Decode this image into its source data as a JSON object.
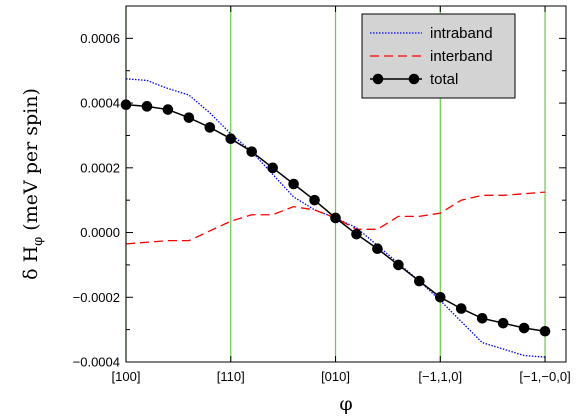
{
  "chart_data": {
    "type": "line",
    "title": "",
    "xlabel": "φ",
    "ylabel_main": "δ H",
    "ylabel_sub": "φ",
    "ylabel_rest": " (meV per spin)",
    "xlim": [
      0,
      4.2
    ],
    "ylim": [
      -0.0004,
      0.0007
    ],
    "x_ticks": [
      {
        "value": 0,
        "label": "[100]"
      },
      {
        "value": 1,
        "label": "[110]"
      },
      {
        "value": 2,
        "label": "[010]"
      },
      {
        "value": 3,
        "label": "[−1,1,0]"
      },
      {
        "value": 4,
        "label": "[−1,−0,0]"
      }
    ],
    "y_ticks": [
      {
        "value": -0.0004,
        "label": "−0.0004"
      },
      {
        "value": -0.0002,
        "label": "−0.0002"
      },
      {
        "value": 0,
        "label": "0.0000"
      },
      {
        "value": 0.0002,
        "label": "0.0002"
      },
      {
        "value": 0.0004,
        "label": "0.0004"
      },
      {
        "value": 0.0006,
        "label": "0.0006"
      }
    ],
    "grid": "vertical lines at x ticks",
    "grid_color": "#66cc44",
    "legend_position": "top-right",
    "series": [
      {
        "name": "intraband",
        "style": "dotted",
        "color": "#0000ff",
        "x": [
          0,
          0.2,
          0.4,
          0.6,
          0.8,
          1.0,
          1.2,
          1.4,
          1.6,
          1.8,
          2.0,
          2.2,
          2.4,
          2.6,
          2.8,
          3.0,
          3.2,
          3.4,
          3.6,
          3.8,
          4.0
        ],
        "y": [
          0.000475,
          0.00047,
          0.000445,
          0.000425,
          0.00037,
          0.000305,
          0.00025,
          0.00018,
          0.00011,
          7e-05,
          4.5e-05,
          1.5e-05,
          -4e-05,
          -9.5e-05,
          -0.00015,
          -0.00021,
          -0.000275,
          -0.00034,
          -0.00036,
          -0.00038,
          -0.000385
        ]
      },
      {
        "name": "interband",
        "style": "dashed",
        "color": "#ff0000",
        "x": [
          0,
          0.2,
          0.4,
          0.6,
          0.8,
          1.0,
          1.2,
          1.4,
          1.6,
          1.8,
          2.0,
          2.2,
          2.4,
          2.6,
          2.8,
          3.0,
          3.2,
          3.4,
          3.6,
          3.8,
          4.0
        ],
        "y": [
          -3.5e-05,
          -3e-05,
          -2.5e-05,
          -2.5e-05,
          5e-06,
          3.5e-05,
          5.5e-05,
          5.5e-05,
          8e-05,
          7e-05,
          4.5e-05,
          1e-05,
          1e-05,
          5e-05,
          5e-05,
          6e-05,
          0.0001,
          0.000115,
          0.000115,
          0.00012,
          0.000125
        ]
      },
      {
        "name": "total",
        "style": "solid-markers",
        "color": "#000000",
        "x": [
          0,
          0.2,
          0.4,
          0.6,
          0.8,
          1.0,
          1.2,
          1.4,
          1.6,
          1.8,
          2.0,
          2.2,
          2.4,
          2.6,
          2.8,
          3.0,
          3.2,
          3.4,
          3.6,
          3.8,
          4.0
        ],
        "y": [
          0.000395,
          0.00039,
          0.00038,
          0.000355,
          0.000325,
          0.00029,
          0.00025,
          0.0002,
          0.00015,
          0.0001,
          4.5e-05,
          -5e-06,
          -5e-05,
          -0.0001,
          -0.00015,
          -0.0002,
          -0.000235,
          -0.000265,
          -0.00028,
          -0.000295,
          -0.000305
        ]
      }
    ]
  }
}
